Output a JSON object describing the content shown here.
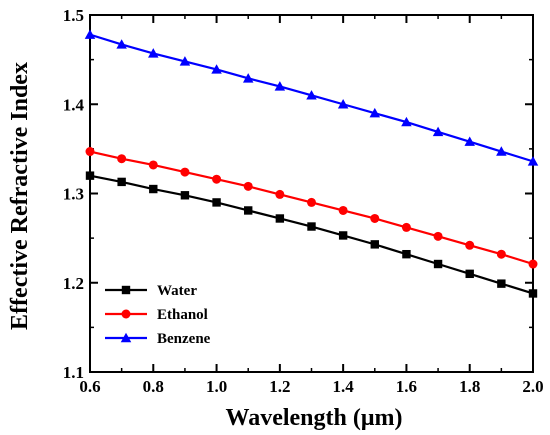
{
  "chart_data": {
    "type": "line",
    "title": "",
    "xlabel": "Wavelength (μm)",
    "ylabel": "Effective Refractive Index",
    "xlim": [
      0.6,
      2.0
    ],
    "ylim": [
      1.1,
      1.5
    ],
    "xticks": [
      "0.6",
      "0.8",
      "1.0",
      "1.2",
      "1.4",
      "1.6",
      "1.8",
      "2.0"
    ],
    "yticks": [
      "1.1",
      "1.2",
      "1.3",
      "1.4",
      "1.5"
    ],
    "grid": false,
    "legend_position": "bottom-left",
    "x": [
      0.6,
      0.7,
      0.8,
      0.9,
      1.0,
      1.1,
      1.2,
      1.3,
      1.4,
      1.5,
      1.6,
      1.7,
      1.8,
      1.9,
      2.0
    ],
    "series": [
      {
        "name": "Water",
        "color": "#000000",
        "marker": "square",
        "values": [
          1.32,
          1.313,
          1.305,
          1.298,
          1.29,
          1.281,
          1.272,
          1.263,
          1.253,
          1.243,
          1.232,
          1.221,
          1.21,
          1.199,
          1.188
        ]
      },
      {
        "name": "Ethanol",
        "color": "#ff0000",
        "marker": "circle",
        "values": [
          1.347,
          1.339,
          1.332,
          1.324,
          1.316,
          1.308,
          1.299,
          1.29,
          1.281,
          1.272,
          1.262,
          1.252,
          1.242,
          1.232,
          1.221
        ]
      },
      {
        "name": "Benzene",
        "color": "#0000ff",
        "marker": "triangle",
        "values": [
          1.478,
          1.467,
          1.457,
          1.448,
          1.439,
          1.429,
          1.42,
          1.41,
          1.4,
          1.39,
          1.38,
          1.369,
          1.358,
          1.347,
          1.336
        ]
      }
    ]
  }
}
